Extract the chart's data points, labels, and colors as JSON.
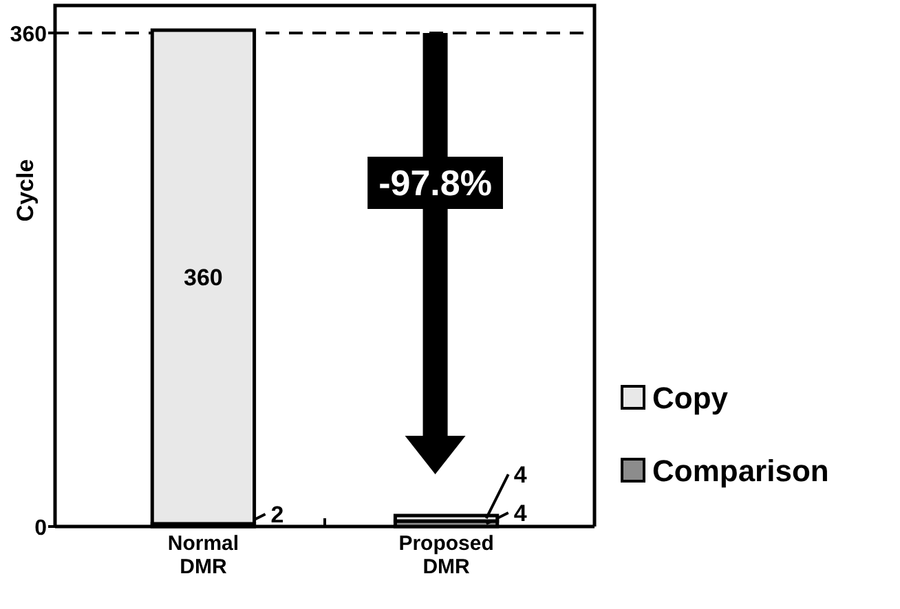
{
  "chart_data": {
    "type": "bar",
    "stacked": true,
    "ylabel": "Cycle",
    "categories": [
      "Normal DMR",
      "Proposed DMR"
    ],
    "series": [
      {
        "name": "Comparison",
        "color": "#8c8c8c",
        "values": [
          2,
          4
        ]
      },
      {
        "name": "Copy",
        "color": "#e8e8e8",
        "values": [
          360,
          4
        ]
      }
    ],
    "ylim": [
      0,
      380
    ],
    "yticks": [
      0,
      360
    ],
    "data_labels": true,
    "legend": "right",
    "ref_lines": [
      {
        "axis": "y",
        "value": 360,
        "label": null,
        "line_style": "dashed",
        "color": "#000000"
      }
    ],
    "annotations": [
      "-97.8%"
    ]
  }
}
